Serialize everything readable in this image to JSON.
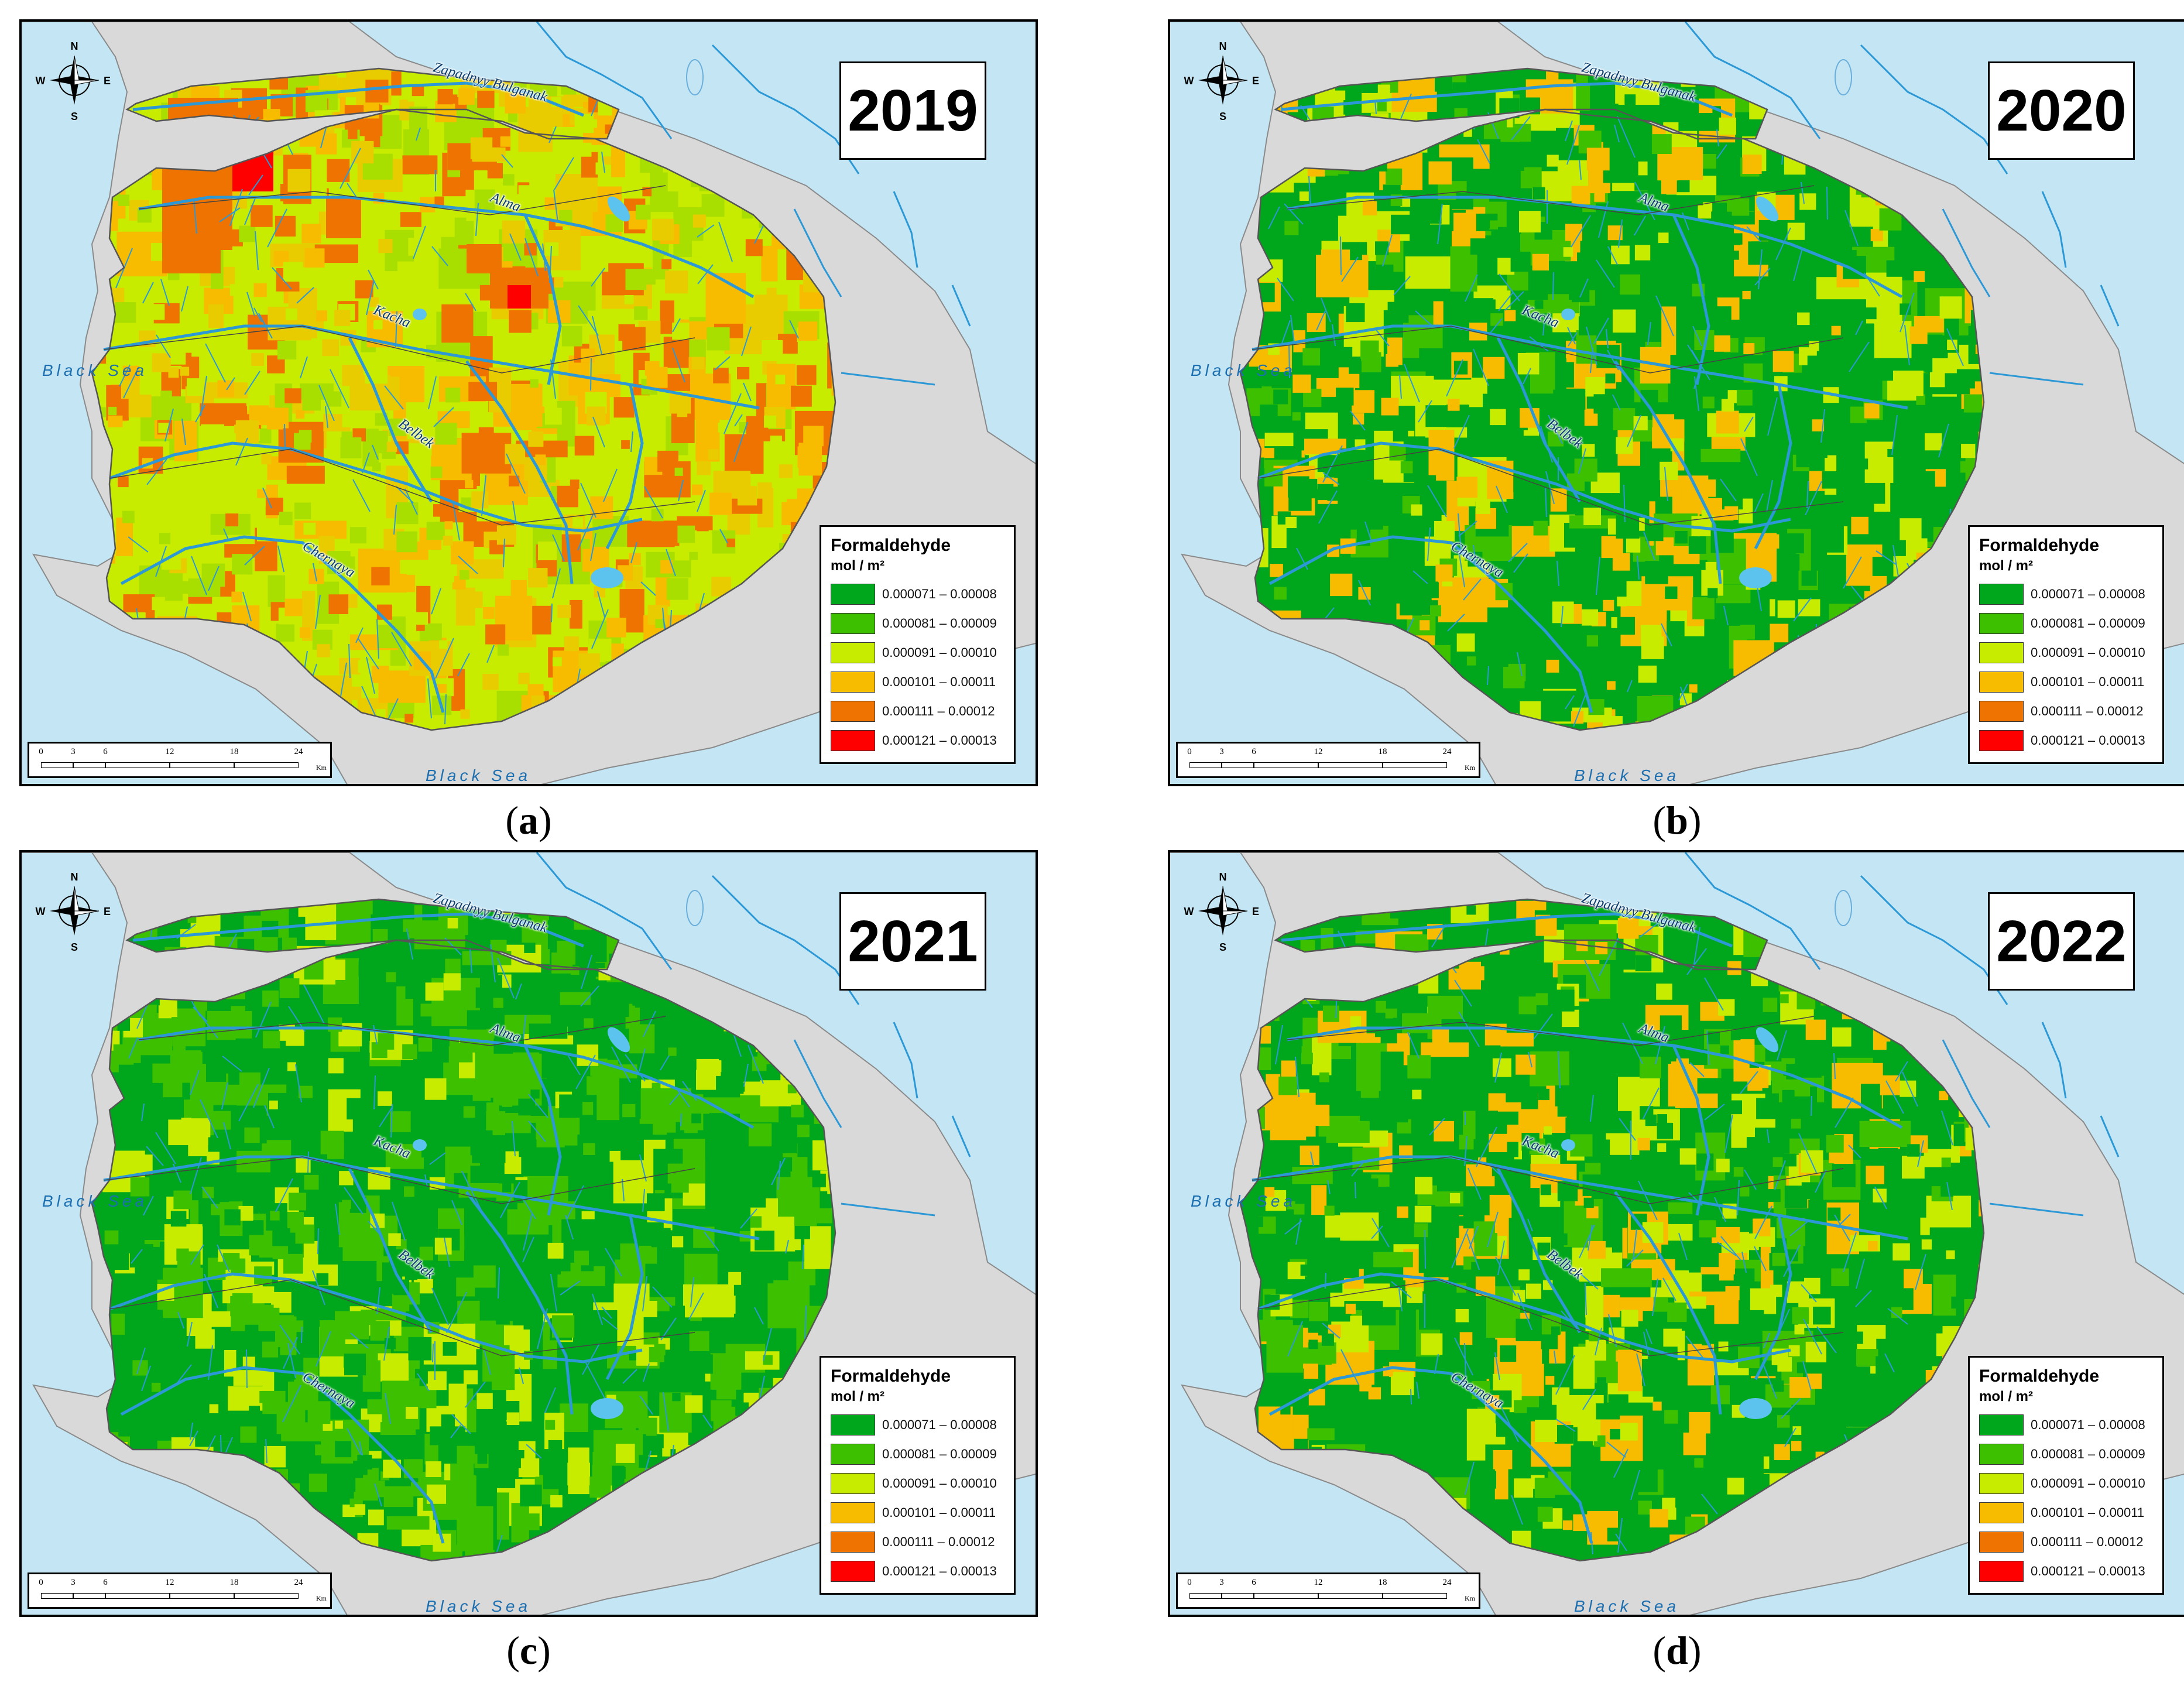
{
  "figure": {
    "panels": [
      {
        "key": "a",
        "year": "2019",
        "caption_letter": "a",
        "palette": [
          "#c8ec00",
          "#f7bb00",
          "#ee7300",
          "#e8cc00",
          "#a8de00"
        ]
      },
      {
        "key": "b",
        "year": "2020",
        "caption_letter": "b",
        "palette": [
          "#00a71c",
          "#3cc000",
          "#c8ec00",
          "#00a71c",
          "#f7bb00"
        ]
      },
      {
        "key": "c",
        "year": "2021",
        "caption_letter": "c",
        "palette": [
          "#00a71c",
          "#3cc000",
          "#00a71c",
          "#c8ec00",
          "#3cc000"
        ]
      },
      {
        "key": "d",
        "year": "2022",
        "caption_letter": "d",
        "palette": [
          "#00a71c",
          "#3cc000",
          "#c8ec00",
          "#00a71c",
          "#f7bb00"
        ]
      }
    ],
    "legend": {
      "title": "Formaldehyde",
      "unit": "mol / m²",
      "classes": [
        {
          "label": "0.000071 – 0.00008",
          "color": "#00a71c"
        },
        {
          "label": "0.000081 – 0.00009",
          "color": "#3cc000"
        },
        {
          "label": "0.000091 – 0.00010",
          "color": "#c8ec00"
        },
        {
          "label": "0.000101 – 0.00011",
          "color": "#f7bb00"
        },
        {
          "label": "0.000111 – 0.00012",
          "color": "#ee7300"
        },
        {
          "label": "0.000121 – 0.00013",
          "color": "#ff0000"
        }
      ]
    },
    "scale": {
      "ticks": [
        "0",
        "3",
        "6",
        "12",
        "18",
        "24"
      ],
      "unit": "Km"
    },
    "compass": {
      "n": "N",
      "s": "S",
      "e": "E",
      "w": "W"
    },
    "labels": {
      "sea_west": "Black Sea",
      "sea_south": "Black Sea",
      "rivers": [
        "Zapadnyy Bulganak",
        "Alma",
        "Kacha",
        "Belbek",
        "Chernaya"
      ]
    },
    "colors": {
      "water": "#c4e6f4",
      "land": "#d9d9d9",
      "river": "#2c98d6"
    }
  }
}
